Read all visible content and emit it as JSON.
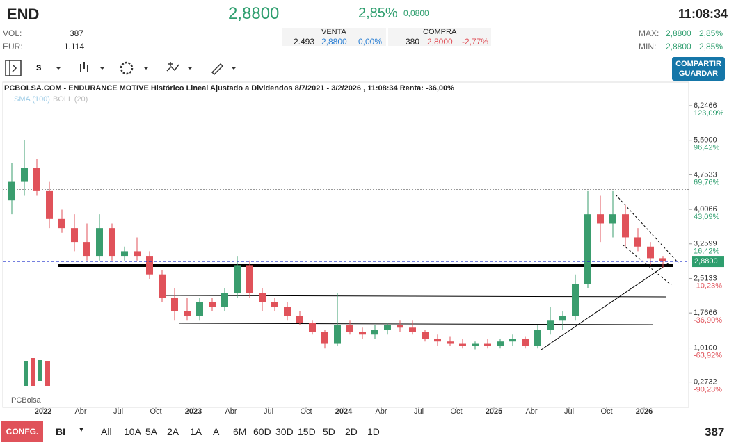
{
  "header": {
    "ticker": "END",
    "price": "2,8800",
    "change_pct": "2,85%",
    "change_abs": "0,0800",
    "time": "11:08:34",
    "vol_label": "VOL:",
    "vol": "387",
    "eur_label": "EUR:",
    "eur": "1.114",
    "venta": {
      "title": "VENTA",
      "qty": "2.493",
      "price": "2,8800",
      "pct": "0,00%"
    },
    "compra": {
      "title": "COMPRA",
      "qty": "380",
      "price": "2,8000",
      "pct": "-2,77%"
    },
    "max_label": "MAX:",
    "max": "2,8800",
    "max_pct": "2,85%",
    "min_label": "MIN:",
    "min": "2,8800",
    "min_pct": "2,85%"
  },
  "toolbar": {
    "interval": "S",
    "share": "COMPARTIR",
    "save": "GUARDAR"
  },
  "footer": {
    "config": "CONFG.",
    "mode": "BI",
    "periods": [
      "All",
      "10A",
      "5A",
      "2A",
      "1A",
      "A",
      "6M",
      "60D",
      "30D",
      "15D",
      "5D",
      "2D",
      "1D"
    ],
    "volume": "387"
  },
  "chart_data": {
    "type": "candlestick",
    "title": "PCBOLSA.COM - ENDURANCE MOTIVE Histórico Lineal Ajustado a Dividendos 8/7/2021 - 3/2/2026 , 11:08:34 Renta: -36,00%",
    "indicators": [
      "SMA (100)",
      "BOLL (20)"
    ],
    "logo": "PCBolsa",
    "up_color": "#3a9d6e",
    "down_color": "#e0525a",
    "x": [
      "2021-10",
      "2021-11",
      "2021-12",
      "2022-01",
      "2022-02",
      "2022-03",
      "2022-04",
      "2022-05",
      "2022-06",
      "2022-07",
      "2022-08",
      "2022-09",
      "2022-10",
      "2022-11",
      "2022-12",
      "2023-01",
      "2023-02",
      "2023-03",
      "2023-04",
      "2023-05",
      "2023-06",
      "2023-07",
      "2023-08",
      "2023-09",
      "2023-10",
      "2023-11",
      "2023-12",
      "2024-01",
      "2024-02",
      "2024-03",
      "2024-04",
      "2024-05",
      "2024-06",
      "2024-07",
      "2024-08",
      "2024-09",
      "2024-10",
      "2024-11",
      "2024-12",
      "2025-01",
      "2025-02",
      "2025-03",
      "2025-04",
      "2025-05",
      "2025-06",
      "2025-07",
      "2025-08",
      "2025-09",
      "2025-10",
      "2025-11",
      "2025-12",
      "2026-01",
      "2026-02"
    ],
    "open": [
      4.2,
      4.6,
      4.9,
      4.4,
      3.8,
      3.6,
      3.3,
      3.0,
      3.6,
      3.0,
      3.1,
      3.0,
      2.6,
      2.1,
      1.8,
      1.7,
      2.0,
      1.9,
      2.2,
      2.8,
      2.2,
      2.0,
      1.9,
      1.7,
      1.55,
      1.35,
      1.1,
      1.5,
      1.35,
      1.3,
      1.4,
      1.5,
      1.45,
      1.35,
      1.2,
      1.15,
      1.1,
      1.05,
      1.1,
      1.05,
      1.15,
      1.2,
      1.05,
      1.4,
      1.6,
      1.7,
      2.4,
      3.9,
      3.7,
      3.9,
      3.4,
      3.2,
      2.95
    ],
    "high": [
      5.0,
      5.5,
      5.1,
      4.6,
      4.0,
      3.9,
      3.7,
      3.9,
      3.7,
      3.2,
      3.4,
      3.1,
      2.7,
      2.3,
      2.1,
      2.1,
      2.1,
      2.3,
      3.0,
      2.9,
      2.3,
      2.1,
      2.0,
      1.8,
      1.6,
      1.4,
      2.2,
      1.6,
      1.45,
      1.5,
      1.55,
      1.6,
      1.6,
      1.4,
      1.3,
      1.25,
      1.2,
      1.15,
      1.2,
      1.2,
      1.3,
      1.25,
      1.5,
      1.9,
      1.8,
      2.6,
      4.4,
      4.3,
      4.4,
      4.1,
      3.6,
      3.3,
      3.0
    ],
    "low": [
      3.9,
      4.3,
      4.3,
      3.6,
      3.5,
      3.1,
      2.9,
      2.9,
      2.9,
      2.9,
      2.9,
      2.5,
      2.0,
      1.6,
      1.6,
      1.6,
      1.8,
      1.8,
      2.1,
      2.1,
      1.8,
      1.8,
      1.6,
      1.5,
      1.3,
      1.0,
      1.05,
      1.3,
      1.2,
      1.2,
      1.3,
      1.35,
      1.3,
      1.15,
      1.05,
      1.05,
      1.0,
      0.98,
      1.0,
      1.0,
      1.05,
      1.0,
      1.0,
      1.3,
      1.4,
      1.6,
      2.3,
      3.3,
      3.4,
      3.2,
      3.1,
      2.8,
      2.75
    ],
    "close": [
      4.6,
      4.9,
      4.4,
      3.8,
      3.6,
      3.3,
      3.0,
      3.6,
      3.0,
      3.1,
      3.0,
      2.6,
      2.1,
      1.8,
      1.7,
      2.0,
      1.9,
      2.2,
      2.8,
      2.2,
      2.0,
      1.9,
      1.7,
      1.55,
      1.35,
      1.1,
      1.5,
      1.35,
      1.3,
      1.4,
      1.5,
      1.45,
      1.35,
      1.2,
      1.15,
      1.1,
      1.05,
      1.1,
      1.05,
      1.15,
      1.2,
      1.05,
      1.4,
      1.6,
      1.7,
      2.4,
      3.9,
      3.7,
      3.9,
      3.4,
      3.2,
      2.95,
      2.88
    ],
    "last_price": 2.88,
    "last_price_label": "2,8800",
    "xlim": [
      "2021-10",
      "2026-04"
    ],
    "xticks": [
      {
        "value": "2022-01",
        "label": "2022"
      },
      {
        "value": "2022-04",
        "label": "Abr"
      },
      {
        "value": "2022-07",
        "label": "Jul"
      },
      {
        "value": "2022-10",
        "label": "Oct"
      },
      {
        "value": "2023-01",
        "label": "2023"
      },
      {
        "value": "2023-04",
        "label": "Abr"
      },
      {
        "value": "2023-07",
        "label": "Jul"
      },
      {
        "value": "2023-10",
        "label": "Oct"
      },
      {
        "value": "2024-01",
        "label": "2024"
      },
      {
        "value": "2024-04",
        "label": "Abr"
      },
      {
        "value": "2024-07",
        "label": "Jul"
      },
      {
        "value": "2024-10",
        "label": "Oct"
      },
      {
        "value": "2025-01",
        "label": "2025"
      },
      {
        "value": "2025-04",
        "label": "Abr"
      },
      {
        "value": "2025-07",
        "label": "Jul"
      },
      {
        "value": "2025-10",
        "label": "Oct"
      },
      {
        "value": "2026-01",
        "label": "2026"
      }
    ],
    "ylim": [
      -0.259,
      6.727
    ],
    "yticks": [
      {
        "value": 6.2466,
        "label": "6,2466"
      },
      {
        "value": 5.5,
        "label": "5,5000"
      },
      {
        "value": 4.7533,
        "label": "4,7533"
      },
      {
        "value": 4.0066,
        "label": "4,0066"
      },
      {
        "value": 3.2599,
        "label": "3,2599"
      },
      {
        "value": 2.5133,
        "label": "2,5133"
      },
      {
        "value": 1.7666,
        "label": "1,7666"
      },
      {
        "value": 1.01,
        "label": "1,0100"
      },
      {
        "value": 0.2732,
        "label": "0,2732"
      }
    ],
    "ytick_changes": [
      "123,09%",
      "96,42%",
      "69,76%",
      "43,09%",
      "16,42%",
      "-10,23%",
      "-36,90%",
      "-63,92%",
      "-90,23%"
    ],
    "ytick_change_colors": [
      "#2e9e6e",
      "#2e9e6e",
      "#2e9e6e",
      "#2e9e6e",
      "#2e9e6e",
      "#e0525a",
      "#e0525a",
      "#e0525a",
      "#e0525a"
    ]
  }
}
